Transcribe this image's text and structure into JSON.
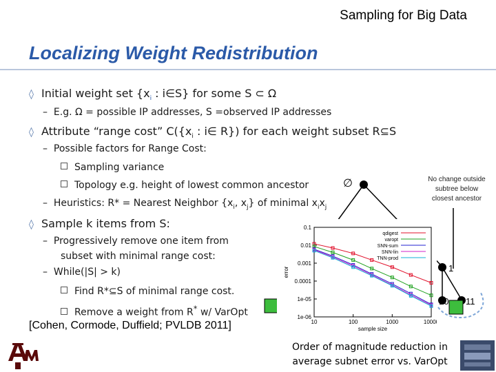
{
  "header": "Sampling for Big Data",
  "title": "Localizing Weight Redistribution",
  "bullets": {
    "b1": "Initial weight set {x",
    "b1_sub": "i",
    "b1_rest": " : i∈S} for some S ⊂ Ω",
    "b1a": "E.g. Ω = possible IP addresses, S =observed IP addresses",
    "b2": "Attribute “range cost” C({x",
    "b2_sub": "i",
    "b2_rest": " : i∈ R}) for each weight subset R⊆S",
    "b2a": "Possible factors for Range Cost:",
    "b2a1": "Sampling variance",
    "b2a2": "Topology e.g. height of lowest common ancestor",
    "b2b": "Heuristics: R* = Nearest Neighbor {x",
    "b2b_sub1": "i",
    "b2b_mid": ", x",
    "b2b_sub2": "j",
    "b2b_rest": "} of minimal x",
    "b2b_sub3": "i",
    "b2b_x": "x",
    "b2b_sub4": "j",
    "b3": "Sample k items from S:",
    "b3a_1": "Progressively remove one item from",
    "b3a_2": "subset with minimal range cost:",
    "b3b": "While(|S| > k)",
    "b3b1": "Find R*⊆S of minimal range cost.",
    "b3b2": "Remove a weight from R",
    "b3b2_sup": "*",
    "b3b2_rest": " w/ VarOpt"
  },
  "citation": "[Cohen, Cormode, Duffield; PVLDB 2011]",
  "note": [
    "No change outside",
    "subtree below",
    "closest ancestor"
  ],
  "caption": [
    "Order of magnitude reduction in",
    "average subnet error vs. VarOpt"
  ],
  "tree": {
    "empty_symbol": "∅",
    "label_1": "1",
    "label_10": "10",
    "label_11": "11"
  },
  "colors": {
    "title": "#2b5aa8",
    "box_green": "#3dbd3d",
    "arrow_blue": "#7ea6d8"
  },
  "chart_data": {
    "type": "line",
    "title": "",
    "xlabel": "sample size",
    "ylabel": "error",
    "xscale": "log",
    "yscale": "log",
    "xlim": [
      10,
      10000
    ],
    "ylim": [
      1e-06,
      0.1
    ],
    "xticks": [
      "10",
      "100",
      "1000",
      "10000"
    ],
    "yticks": [
      "0.1",
      "0.01",
      "0.001",
      "0.0001",
      "1e-05",
      "1e-06"
    ],
    "legend_position": "top-right",
    "series": [
      {
        "name": "qdigest",
        "color": "#e0102a",
        "x": [
          10,
          30,
          100,
          300,
          1000,
          3000,
          10000
        ],
        "y": [
          0.012,
          0.007,
          0.0035,
          0.0015,
          0.0006,
          0.00022,
          8e-05
        ]
      },
      {
        "name": "varopt",
        "color": "#1ea01e",
        "x": [
          10,
          30,
          100,
          300,
          1000,
          3000,
          10000
        ],
        "y": [
          0.0085,
          0.004,
          0.0015,
          0.0005,
          0.00016,
          5e-05,
          1.6e-05
        ]
      },
      {
        "name": "SNN-sum",
        "color": "#2020d0",
        "x": [
          10,
          30,
          100,
          300,
          1000,
          3000,
          10000
        ],
        "y": [
          0.006,
          0.0025,
          0.0008,
          0.00025,
          7e-05,
          2e-05,
          5e-06
        ]
      },
      {
        "name": "SNN-lin",
        "color": "#d020c8",
        "x": [
          10,
          30,
          100,
          300,
          1000,
          3000,
          10000
        ],
        "y": [
          0.0055,
          0.0022,
          0.0007,
          0.00022,
          6e-05,
          1.7e-05,
          4.5e-06
        ]
      },
      {
        "name": "TNN-prod",
        "color": "#10b0d8",
        "x": [
          10,
          30,
          100,
          300,
          1000,
          3000,
          10000
        ],
        "y": [
          0.005,
          0.002,
          0.0006,
          0.0002,
          5.5e-05,
          1.5e-05,
          4e-06
        ]
      }
    ]
  }
}
